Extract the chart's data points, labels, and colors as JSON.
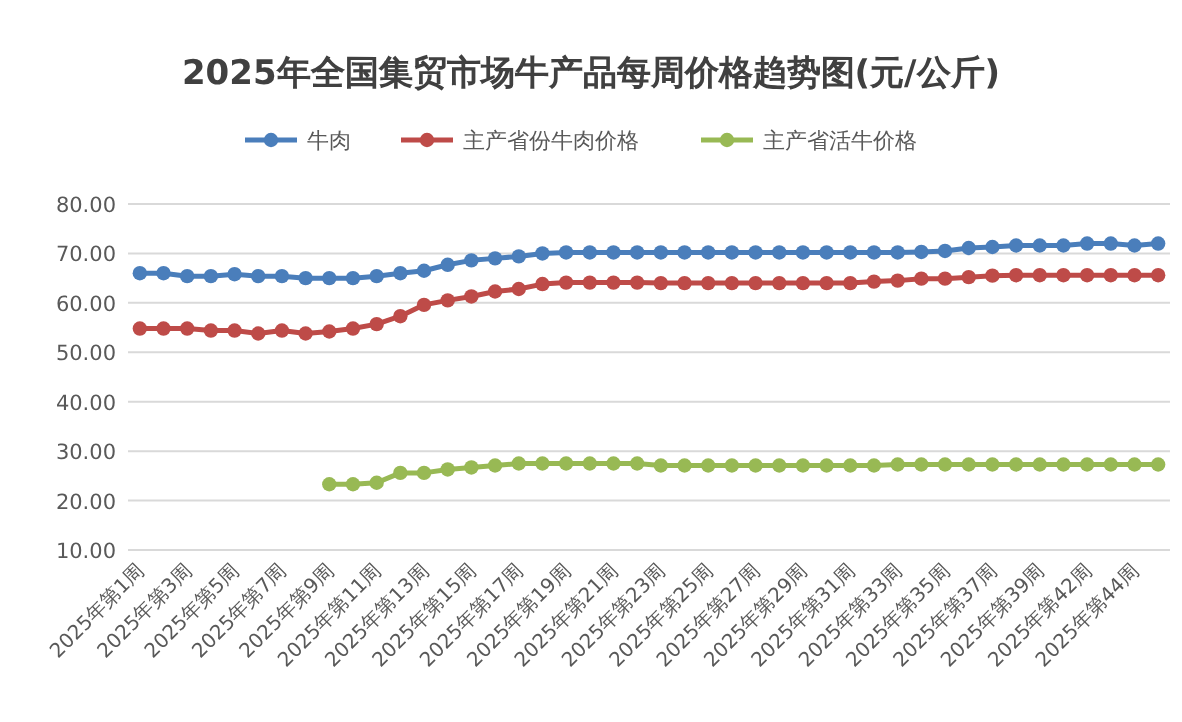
{
  "chart_data": {
    "type": "line",
    "title": "2025年全国集贸市场牛产品每周价格趋势图(元/公斤)",
    "categories": [
      "2025年第1周",
      null,
      "2025年第3周",
      null,
      "2025年第5周",
      null,
      "2025年第7周",
      null,
      "2025年第9周",
      null,
      "2025年第11周",
      null,
      "2025年第13周",
      null,
      "2025年第15周",
      null,
      "2025年第17周",
      null,
      "2025年第19周",
      null,
      "2025年第21周",
      null,
      "2025年第23周",
      null,
      "2025年第25周",
      null,
      "2025年第27周",
      null,
      "2025年第29周",
      null,
      "2025年第31周",
      null,
      "2025年第33周",
      null,
      "2025年第35周",
      null,
      "2025年第37周",
      null,
      "2025年第39周",
      null,
      "2025年第42周",
      null,
      "2025年第44周",
      null
    ],
    "series": [
      {
        "name": "牛肉",
        "color": "#4a7ebb",
        "values": [
          66.0,
          66.0,
          65.4,
          65.4,
          65.8,
          65.4,
          65.4,
          65.0,
          65.0,
          65.0,
          65.4,
          66.0,
          66.5,
          67.7,
          68.6,
          69.0,
          69.4,
          70.0,
          70.2,
          70.2,
          70.2,
          70.2,
          70.2,
          70.2,
          70.2,
          70.2,
          70.2,
          70.2,
          70.2,
          70.2,
          70.2,
          70.2,
          70.2,
          70.3,
          70.5,
          71.1,
          71.3,
          71.6,
          71.6,
          71.6,
          72.0,
          72.0,
          71.6,
          72.0
        ]
      },
      {
        "name": "主产省份牛肉价格",
        "color": "#be4b48",
        "values": [
          54.8,
          54.8,
          54.8,
          54.4,
          54.4,
          53.8,
          54.4,
          53.8,
          54.2,
          54.8,
          55.7,
          57.3,
          59.6,
          60.5,
          61.3,
          62.3,
          62.8,
          63.8,
          64.1,
          64.1,
          64.1,
          64.1,
          64.0,
          64.0,
          64.0,
          64.0,
          64.0,
          64.0,
          64.0,
          64.0,
          64.0,
          64.3,
          64.5,
          64.9,
          64.9,
          65.2,
          65.5,
          65.6,
          65.6,
          65.6,
          65.6,
          65.6,
          65.6,
          65.6
        ]
      },
      {
        "name": "主产省活牛价格",
        "color": "#98b954",
        "values": [
          null,
          null,
          null,
          null,
          null,
          null,
          null,
          null,
          23.3,
          23.3,
          23.6,
          25.6,
          25.6,
          26.3,
          26.7,
          27.1,
          27.5,
          27.5,
          27.5,
          27.5,
          27.5,
          27.5,
          27.1,
          27.1,
          27.1,
          27.1,
          27.1,
          27.1,
          27.1,
          27.1,
          27.1,
          27.1,
          27.3,
          27.3,
          27.3,
          27.3,
          27.3,
          27.3,
          27.3,
          27.3,
          27.3,
          27.3,
          27.3,
          27.3
        ]
      }
    ],
    "ylim": [
      10,
      80
    ],
    "yticks": [
      {
        "value": 10,
        "label": "10.00"
      },
      {
        "value": 20,
        "label": "20.00"
      },
      {
        "value": 30,
        "label": "30.00"
      },
      {
        "value": 40,
        "label": "40.00"
      },
      {
        "value": 50,
        "label": "50.00"
      },
      {
        "value": 60,
        "label": "60.00"
      },
      {
        "value": 70,
        "label": "70.00"
      },
      {
        "value": 80,
        "label": "80.00"
      }
    ],
    "grid": "y",
    "legend": "top",
    "marker": "circle",
    "line_style": "solid"
  }
}
